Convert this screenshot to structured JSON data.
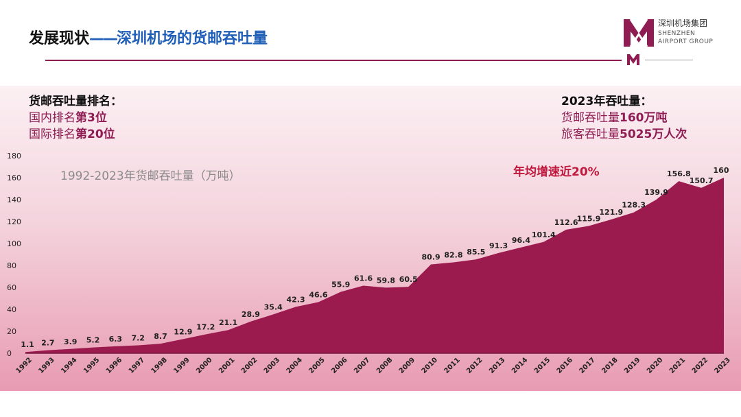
{
  "header": {
    "title_main": "发展现状",
    "title_dash": "——",
    "title_sub": "深圳机场的货邮吞吐量"
  },
  "logo": {
    "name_cn": "深圳机场集团",
    "name_en_line1": "SHENZHEN",
    "name_en_line2": "AIRPORT GROUP",
    "color": "#8f1d53"
  },
  "ranking": {
    "heading": "货邮吞吐量排名：",
    "domestic_prefix": "国内排名",
    "domestic_value": "第3位",
    "intl_prefix": "国际排名",
    "intl_value": "第20位"
  },
  "stats2023": {
    "heading": "2023年吞吐量：",
    "cargo_prefix": "货邮吞吐量",
    "cargo_value": "160万吨",
    "pax_prefix": "旅客吞吐量",
    "pax_value": "5025万人次"
  },
  "colors": {
    "accent": "#8f1d53",
    "blue": "#1f5fb8"
  },
  "chart_data": {
    "type": "area",
    "title": "1992-2023年货邮吞吐量（万吨）",
    "annotation": "年均增速近20%",
    "x": [
      "1992",
      "1993",
      "1994",
      "1995",
      "1996",
      "1997",
      "1998",
      "1999",
      "2000",
      "2001",
      "2002",
      "2003",
      "2004",
      "2005",
      "2006",
      "2007",
      "2008",
      "2009",
      "2010",
      "2011",
      "2012",
      "2013",
      "2014",
      "2015",
      "2016",
      "2017",
      "2018",
      "2019",
      "2020",
      "2021",
      "2022",
      "2023"
    ],
    "values": [
      1.1,
      2.7,
      3.9,
      5.2,
      6.3,
      7.2,
      8.7,
      12.9,
      17.2,
      21.1,
      28.9,
      35.4,
      42.3,
      46.6,
      55.9,
      61.6,
      59.8,
      60.5,
      80.9,
      82.8,
      85.5,
      91.3,
      96.4,
      101.4,
      112.6,
      115.9,
      121.9,
      128.3,
      139.9,
      156.8,
      150.7,
      160
    ],
    "value_labels": [
      "1.1",
      "2.7",
      "3.9",
      "5.2",
      "6.3",
      "7.2",
      "8.7",
      "12.9",
      "17.2",
      "21.1",
      "28.9",
      "35.4",
      "42.3",
      "46.6",
      "55.9",
      "61.6",
      "59.8",
      "60.5",
      "80.9",
      "82.8",
      "85.5",
      "91.3",
      "96.4",
      "101.4",
      "112.6",
      "115.9",
      "121.9",
      "128.3",
      "139.9",
      "156.8",
      "150.7",
      "160"
    ],
    "y_ticks": [
      "0",
      "20",
      "40",
      "60",
      "80",
      "100",
      "120",
      "140",
      "160",
      "180"
    ],
    "ylim": [
      0,
      180
    ],
    "fill_color": "#9c1b4f"
  }
}
